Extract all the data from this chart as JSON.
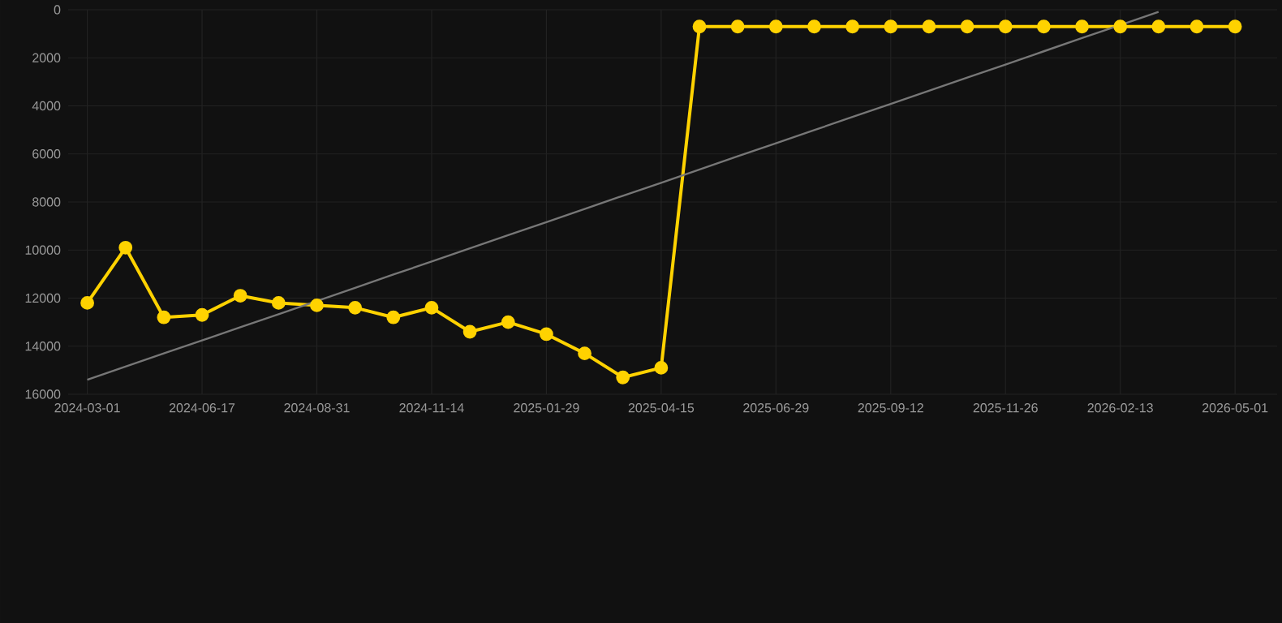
{
  "chart_data": {
    "type": "line",
    "categories": [
      "2024-03-01",
      null,
      null,
      "2024-06-17",
      null,
      null,
      "2024-08-31",
      null,
      null,
      "2024-11-14",
      null,
      null,
      "2025-01-29",
      null,
      null,
      "2025-04-15",
      null,
      null,
      "2025-06-29",
      null,
      null,
      "2025-09-12",
      null,
      null,
      "2025-11-26",
      null,
      null,
      "2026-02-13",
      null,
      null,
      "2026-05-01"
    ],
    "series": [
      {
        "color": "#ffd200",
        "marker": "circle",
        "values": [
          12200,
          9900,
          12800,
          12700,
          11900,
          12200,
          12300,
          12400,
          12800,
          12400,
          13400,
          13000,
          13500,
          14300,
          15300,
          14900,
          700,
          700,
          700,
          700,
          700,
          700,
          700,
          700,
          700,
          700,
          700,
          700,
          700,
          700,
          700
        ]
      },
      {
        "color": "#777777",
        "marker": "none",
        "values": [
          15400,
          14850,
          14300,
          13760,
          13210,
          12670,
          12120,
          11570,
          11020,
          10480,
          9930,
          9380,
          8840,
          8290,
          7740,
          7200,
          6650,
          6100,
          5560,
          5010,
          4460,
          3920,
          3370,
          2820,
          2280,
          1730,
          1180,
          640,
          90,
          null,
          null
        ]
      }
    ],
    "ylim": [
      16000,
      0
    ],
    "yticks": [
      0,
      2000,
      4000,
      6000,
      8000,
      10000,
      12000,
      14000,
      16000
    ],
    "grid": true,
    "line_style": "solid"
  }
}
